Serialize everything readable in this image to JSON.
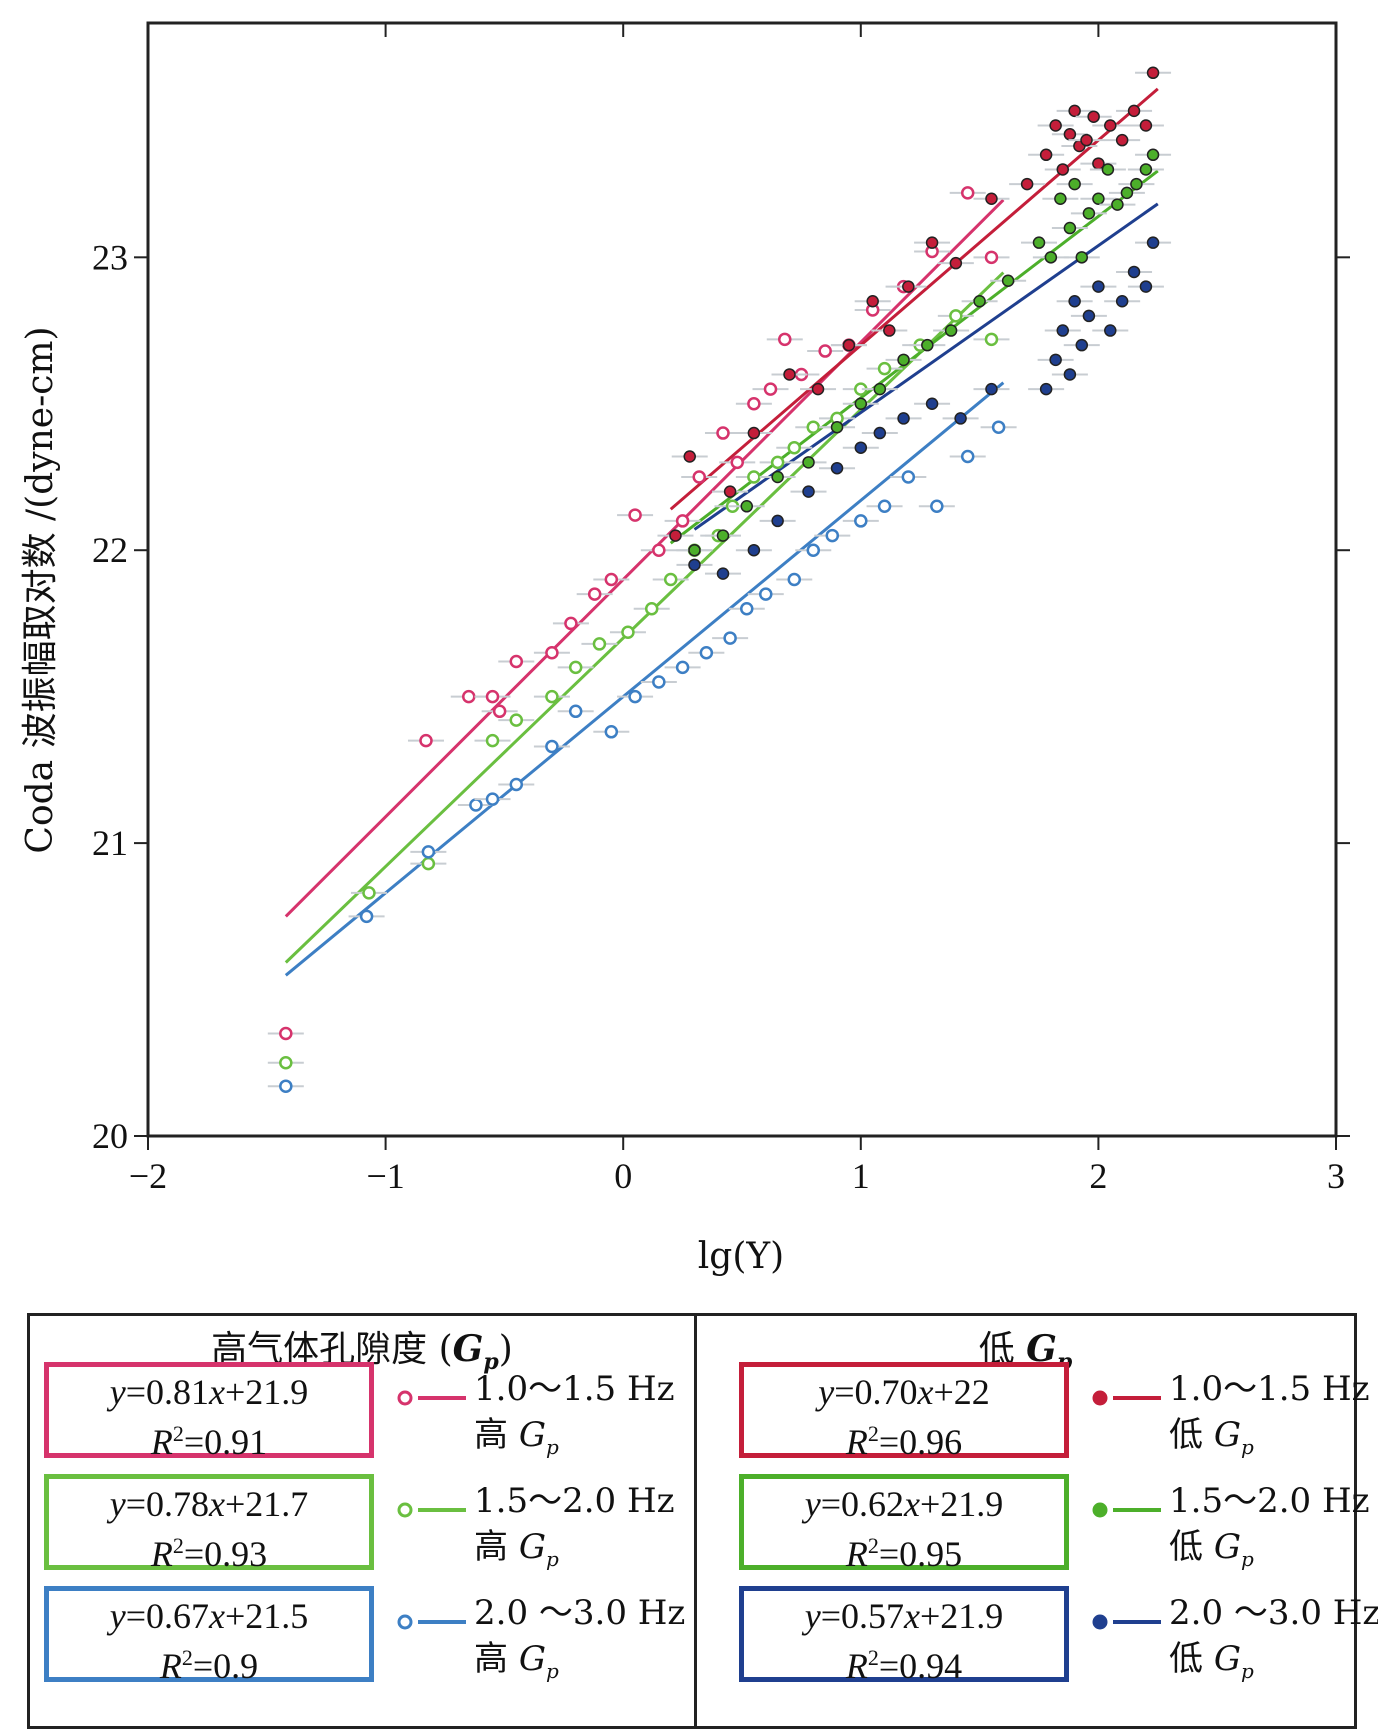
{
  "chart_data": {
    "type": "scatter",
    "title": "",
    "xlabel": "lg(Y)",
    "ylabel": "Coda 波振幅取对数 /(dyne-cm)",
    "xlim": [
      -2,
      3
    ],
    "ylim": [
      20,
      23.8
    ],
    "x_ticks": [
      "−2",
      "−1",
      "0",
      "1",
      "2",
      "3"
    ],
    "y_ticks": [
      "20",
      "21",
      "22",
      "23"
    ],
    "x_tick_values": [
      -2,
      -1,
      0,
      1,
      2,
      3
    ],
    "y_tick_values": [
      20,
      21,
      22,
      23
    ],
    "grid": false,
    "legend_position": "below",
    "series": [
      {
        "name": "1.0～1.5 Hz 高 Gp",
        "group": "high",
        "color": "#d6336c",
        "marker": "open-circle",
        "fit": {
          "slope": 0.81,
          "intercept": 21.9,
          "x_range": [
            -1.42,
            1.6
          ]
        },
        "x": [
          -1.42,
          -0.83,
          -0.65,
          -0.55,
          -0.52,
          -0.45,
          -0.3,
          -0.22,
          -0.12,
          -0.05,
          0.05,
          0.15,
          0.25,
          0.32,
          0.42,
          0.48,
          0.55,
          0.62,
          0.68,
          0.75,
          0.85,
          0.95,
          1.05,
          1.18,
          1.3,
          1.45,
          1.55
        ],
        "y": [
          20.35,
          21.35,
          21.5,
          21.5,
          21.45,
          21.62,
          21.65,
          21.75,
          21.85,
          21.9,
          22.12,
          22.0,
          22.1,
          22.25,
          22.4,
          22.3,
          22.5,
          22.55,
          22.72,
          22.6,
          22.68,
          22.7,
          22.82,
          22.9,
          23.02,
          23.22,
          23.0
        ]
      },
      {
        "name": "1.5～2.0 Hz 高 Gp",
        "group": "high",
        "color": "#6abf40",
        "marker": "open-circle",
        "fit": {
          "slope": 0.78,
          "intercept": 21.7,
          "x_range": [
            -1.42,
            1.6
          ]
        },
        "x": [
          -1.42,
          -1.07,
          -0.82,
          -0.55,
          -0.45,
          -0.3,
          -0.2,
          -0.1,
          0.02,
          0.12,
          0.2,
          0.3,
          0.4,
          0.46,
          0.55,
          0.65,
          0.72,
          0.8,
          0.9,
          1.0,
          1.1,
          1.25,
          1.4,
          1.55
        ],
        "y": [
          20.25,
          20.83,
          20.93,
          21.35,
          21.42,
          21.5,
          21.6,
          21.68,
          21.72,
          21.8,
          21.9,
          22.0,
          22.05,
          22.15,
          22.25,
          22.3,
          22.35,
          22.42,
          22.45,
          22.55,
          22.62,
          22.7,
          22.8,
          22.72
        ]
      },
      {
        "name": "2.0 ～3.0 Hz 高 Gp",
        "group": "high",
        "color": "#3d7fc4",
        "marker": "open-circle",
        "fit": {
          "slope": 0.67,
          "intercept": 21.5,
          "x_range": [
            -1.42,
            1.6
          ]
        },
        "x": [
          -1.42,
          -1.08,
          -0.82,
          -0.62,
          -0.55,
          -0.45,
          -0.3,
          -0.2,
          -0.05,
          0.05,
          0.15,
          0.25,
          0.35,
          0.45,
          0.52,
          0.6,
          0.72,
          0.8,
          0.88,
          1.0,
          1.1,
          1.2,
          1.32,
          1.45,
          1.58
        ],
        "y": [
          20.17,
          20.75,
          20.97,
          21.13,
          21.15,
          21.2,
          21.33,
          21.45,
          21.38,
          21.5,
          21.55,
          21.6,
          21.65,
          21.7,
          21.8,
          21.85,
          21.9,
          22.0,
          22.05,
          22.1,
          22.15,
          22.25,
          22.15,
          22.32,
          22.42
        ]
      },
      {
        "name": "1.0～1.5 Hz 低 Gp",
        "group": "low",
        "color": "#c41e3a",
        "marker": "filled-circle",
        "fit": {
          "slope": 0.7,
          "intercept": 22,
          "x_range": [
            0.2,
            2.25
          ]
        },
        "x": [
          0.22,
          0.28,
          0.45,
          0.55,
          0.7,
          0.82,
          0.95,
          1.05,
          1.12,
          1.2,
          1.3,
          1.4,
          1.55,
          1.7,
          1.78,
          1.82,
          1.85,
          1.88,
          1.9,
          1.92,
          1.95,
          1.98,
          2.0,
          2.05,
          2.1,
          2.15,
          2.2,
          2.23
        ],
        "y": [
          22.05,
          22.32,
          22.2,
          22.4,
          22.6,
          22.55,
          22.7,
          22.85,
          22.75,
          22.9,
          23.05,
          22.98,
          23.2,
          23.25,
          23.35,
          23.45,
          23.3,
          23.42,
          23.5,
          23.38,
          23.4,
          23.48,
          23.32,
          23.45,
          23.4,
          23.5,
          23.45,
          23.63
        ]
      },
      {
        "name": "1.5～2.0 Hz 低 Gp",
        "group": "low",
        "color": "#4caf2a",
        "marker": "filled-circle",
        "fit": {
          "slope": 0.62,
          "intercept": 21.9,
          "x_range": [
            0.2,
            2.25
          ]
        },
        "x": [
          0.3,
          0.42,
          0.52,
          0.65,
          0.78,
          0.9,
          1.0,
          1.08,
          1.18,
          1.28,
          1.38,
          1.5,
          1.62,
          1.75,
          1.8,
          1.84,
          1.88,
          1.9,
          1.93,
          1.96,
          2.0,
          2.04,
          2.08,
          2.12,
          2.16,
          2.2,
          2.23
        ],
        "y": [
          22.0,
          22.05,
          22.15,
          22.25,
          22.3,
          22.42,
          22.5,
          22.55,
          22.65,
          22.7,
          22.75,
          22.85,
          22.92,
          23.05,
          23.0,
          23.2,
          23.1,
          23.25,
          23.0,
          23.15,
          23.2,
          23.3,
          23.18,
          23.22,
          23.25,
          23.3,
          23.35
        ]
      },
      {
        "name": "2.0 ～3.0 Hz 低 Gp",
        "group": "low",
        "color": "#1f3f8f",
        "marker": "filled-circle",
        "fit": {
          "slope": 0.57,
          "intercept": 21.9,
          "x_range": [
            0.3,
            2.25
          ]
        },
        "x": [
          0.3,
          0.42,
          0.55,
          0.65,
          0.78,
          0.9,
          1.0,
          1.08,
          1.18,
          1.3,
          1.42,
          1.55,
          1.78,
          1.82,
          1.85,
          1.88,
          1.9,
          1.93,
          1.96,
          2.0,
          2.05,
          2.1,
          2.15,
          2.2,
          2.23
        ],
        "y": [
          21.95,
          21.92,
          22.0,
          22.1,
          22.2,
          22.28,
          22.35,
          22.4,
          22.45,
          22.5,
          22.45,
          22.55,
          22.55,
          22.65,
          22.75,
          22.6,
          22.85,
          22.7,
          22.8,
          22.9,
          22.75,
          22.85,
          22.95,
          22.9,
          23.05
        ]
      }
    ]
  },
  "legend": {
    "high": {
      "header": "高气体孔隙度 (",
      "header_var": "G",
      "header_sub": "p",
      "header_close": ")",
      "items": [
        {
          "eq_y": "y",
          "eq_rest": "=0.81",
          "eq_x": "x",
          "eq_c": "+21.9",
          "r_label": "R",
          "r_sup": "2",
          "r_val": "=0.91",
          "color": "#d6336c",
          "band": "1.0～1.5 Hz",
          "gp_prefix": "高 ",
          "gp_var": "G",
          "gp_sub": "p"
        },
        {
          "eq_y": "y",
          "eq_rest": "=0.78",
          "eq_x": "x",
          "eq_c": "+21.7",
          "r_label": "R",
          "r_sup": "2",
          "r_val": "=0.93",
          "color": "#6abf40",
          "band": "1.5～2.0 Hz",
          "gp_prefix": "高 ",
          "gp_var": "G",
          "gp_sub": "p"
        },
        {
          "eq_y": "y",
          "eq_rest": "=0.67",
          "eq_x": "x",
          "eq_c": "+21.5",
          "r_label": "R",
          "r_sup": "2",
          "r_val": "=0.9",
          "color": "#3d7fc4",
          "band": "2.0 ～3.0 Hz",
          "gp_prefix": "高 ",
          "gp_var": "G",
          "gp_sub": "p"
        }
      ]
    },
    "low": {
      "header": "低 ",
      "header_var": "G",
      "header_sub": "p",
      "header_close": "",
      "items": [
        {
          "eq_y": "y",
          "eq_rest": "=0.70",
          "eq_x": "x",
          "eq_c": "+22",
          "r_label": "R",
          "r_sup": "2",
          "r_val": "=0.96",
          "color": "#c41e3a",
          "band": "1.0～1.5 Hz",
          "gp_prefix": "低 ",
          "gp_var": "G",
          "gp_sub": "p"
        },
        {
          "eq_y": "y",
          "eq_rest": "=0.62",
          "eq_x": "x",
          "eq_c": "+21.9",
          "r_label": "R",
          "r_sup": "2",
          "r_val": "=0.95",
          "color": "#4caf2a",
          "band": "1.5～2.0 Hz",
          "gp_prefix": "低 ",
          "gp_var": "G",
          "gp_sub": "p"
        },
        {
          "eq_y": "y",
          "eq_rest": "=0.57",
          "eq_x": "x",
          "eq_c": "+21.9",
          "r_label": "R",
          "r_sup": "2",
          "r_val": "=0.94",
          "color": "#1f3f8f",
          "band": "2.0 ～3.0 Hz",
          "gp_prefix": "低 ",
          "gp_var": "G",
          "gp_sub": "p"
        }
      ]
    }
  }
}
